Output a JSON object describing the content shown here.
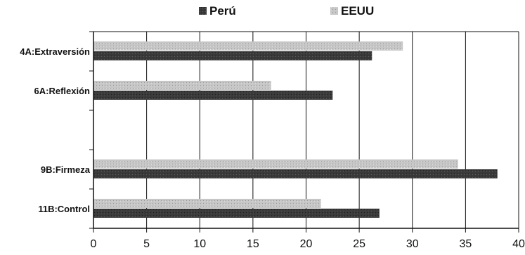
{
  "chart_data": {
    "type": "bar",
    "orientation": "horizontal",
    "categories": [
      "4A:Extraversión",
      "6A:Reflexión",
      "",
      "9B:Firmeza",
      "11B:Control"
    ],
    "series": [
      {
        "name": "Perú",
        "color": "#3a3a3a",
        "values": [
          26.2,
          22.5,
          null,
          38.0,
          26.9
        ]
      },
      {
        "name": "EEUU",
        "color": "#c4c4c4",
        "values": [
          29.1,
          16.7,
          null,
          34.3,
          21.4
        ]
      }
    ],
    "xlim": [
      0,
      40
    ],
    "xticks": [
      0,
      5,
      10,
      15,
      20,
      25,
      30,
      35,
      40
    ],
    "grid": "vertical",
    "legend": "top"
  }
}
